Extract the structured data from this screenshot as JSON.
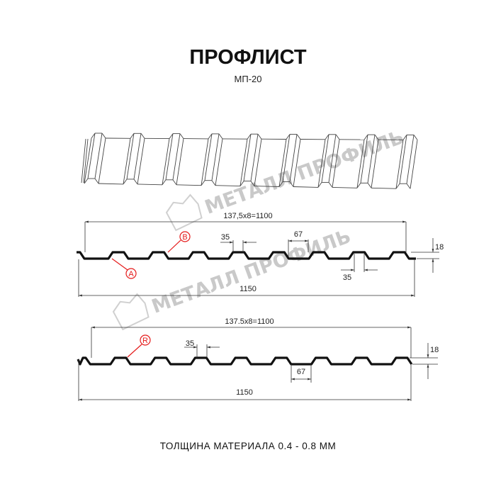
{
  "title": "ПРОФЛИСТ",
  "subtitle": "МП-20",
  "watermark": "МЕТАЛЛ ПРОФИЛЬ",
  "profile_top": {
    "pitch_dim": "137,5x8=1100",
    "rib_top_dim": "35",
    "rib_bottom_dim": "67",
    "rib_base_dim": "35",
    "height_dim": "18",
    "total_width_dim": "1150",
    "marker_a": "A",
    "marker_b": "B"
  },
  "profile_bottom": {
    "pitch_dim": "137.5x8=1100",
    "rib_top_dim": "35",
    "rib_bottom_dim": "67",
    "height_dim": "18",
    "total_width_dim": "1150",
    "marker_r": "R"
  },
  "footer": "ТОЛЩИНА МАТЕРИАЛА 0.4 - 0.8 ММ",
  "colors": {
    "marker": "#e51b1b",
    "profile": "#111111",
    "watermark": "#c9c9c9"
  }
}
